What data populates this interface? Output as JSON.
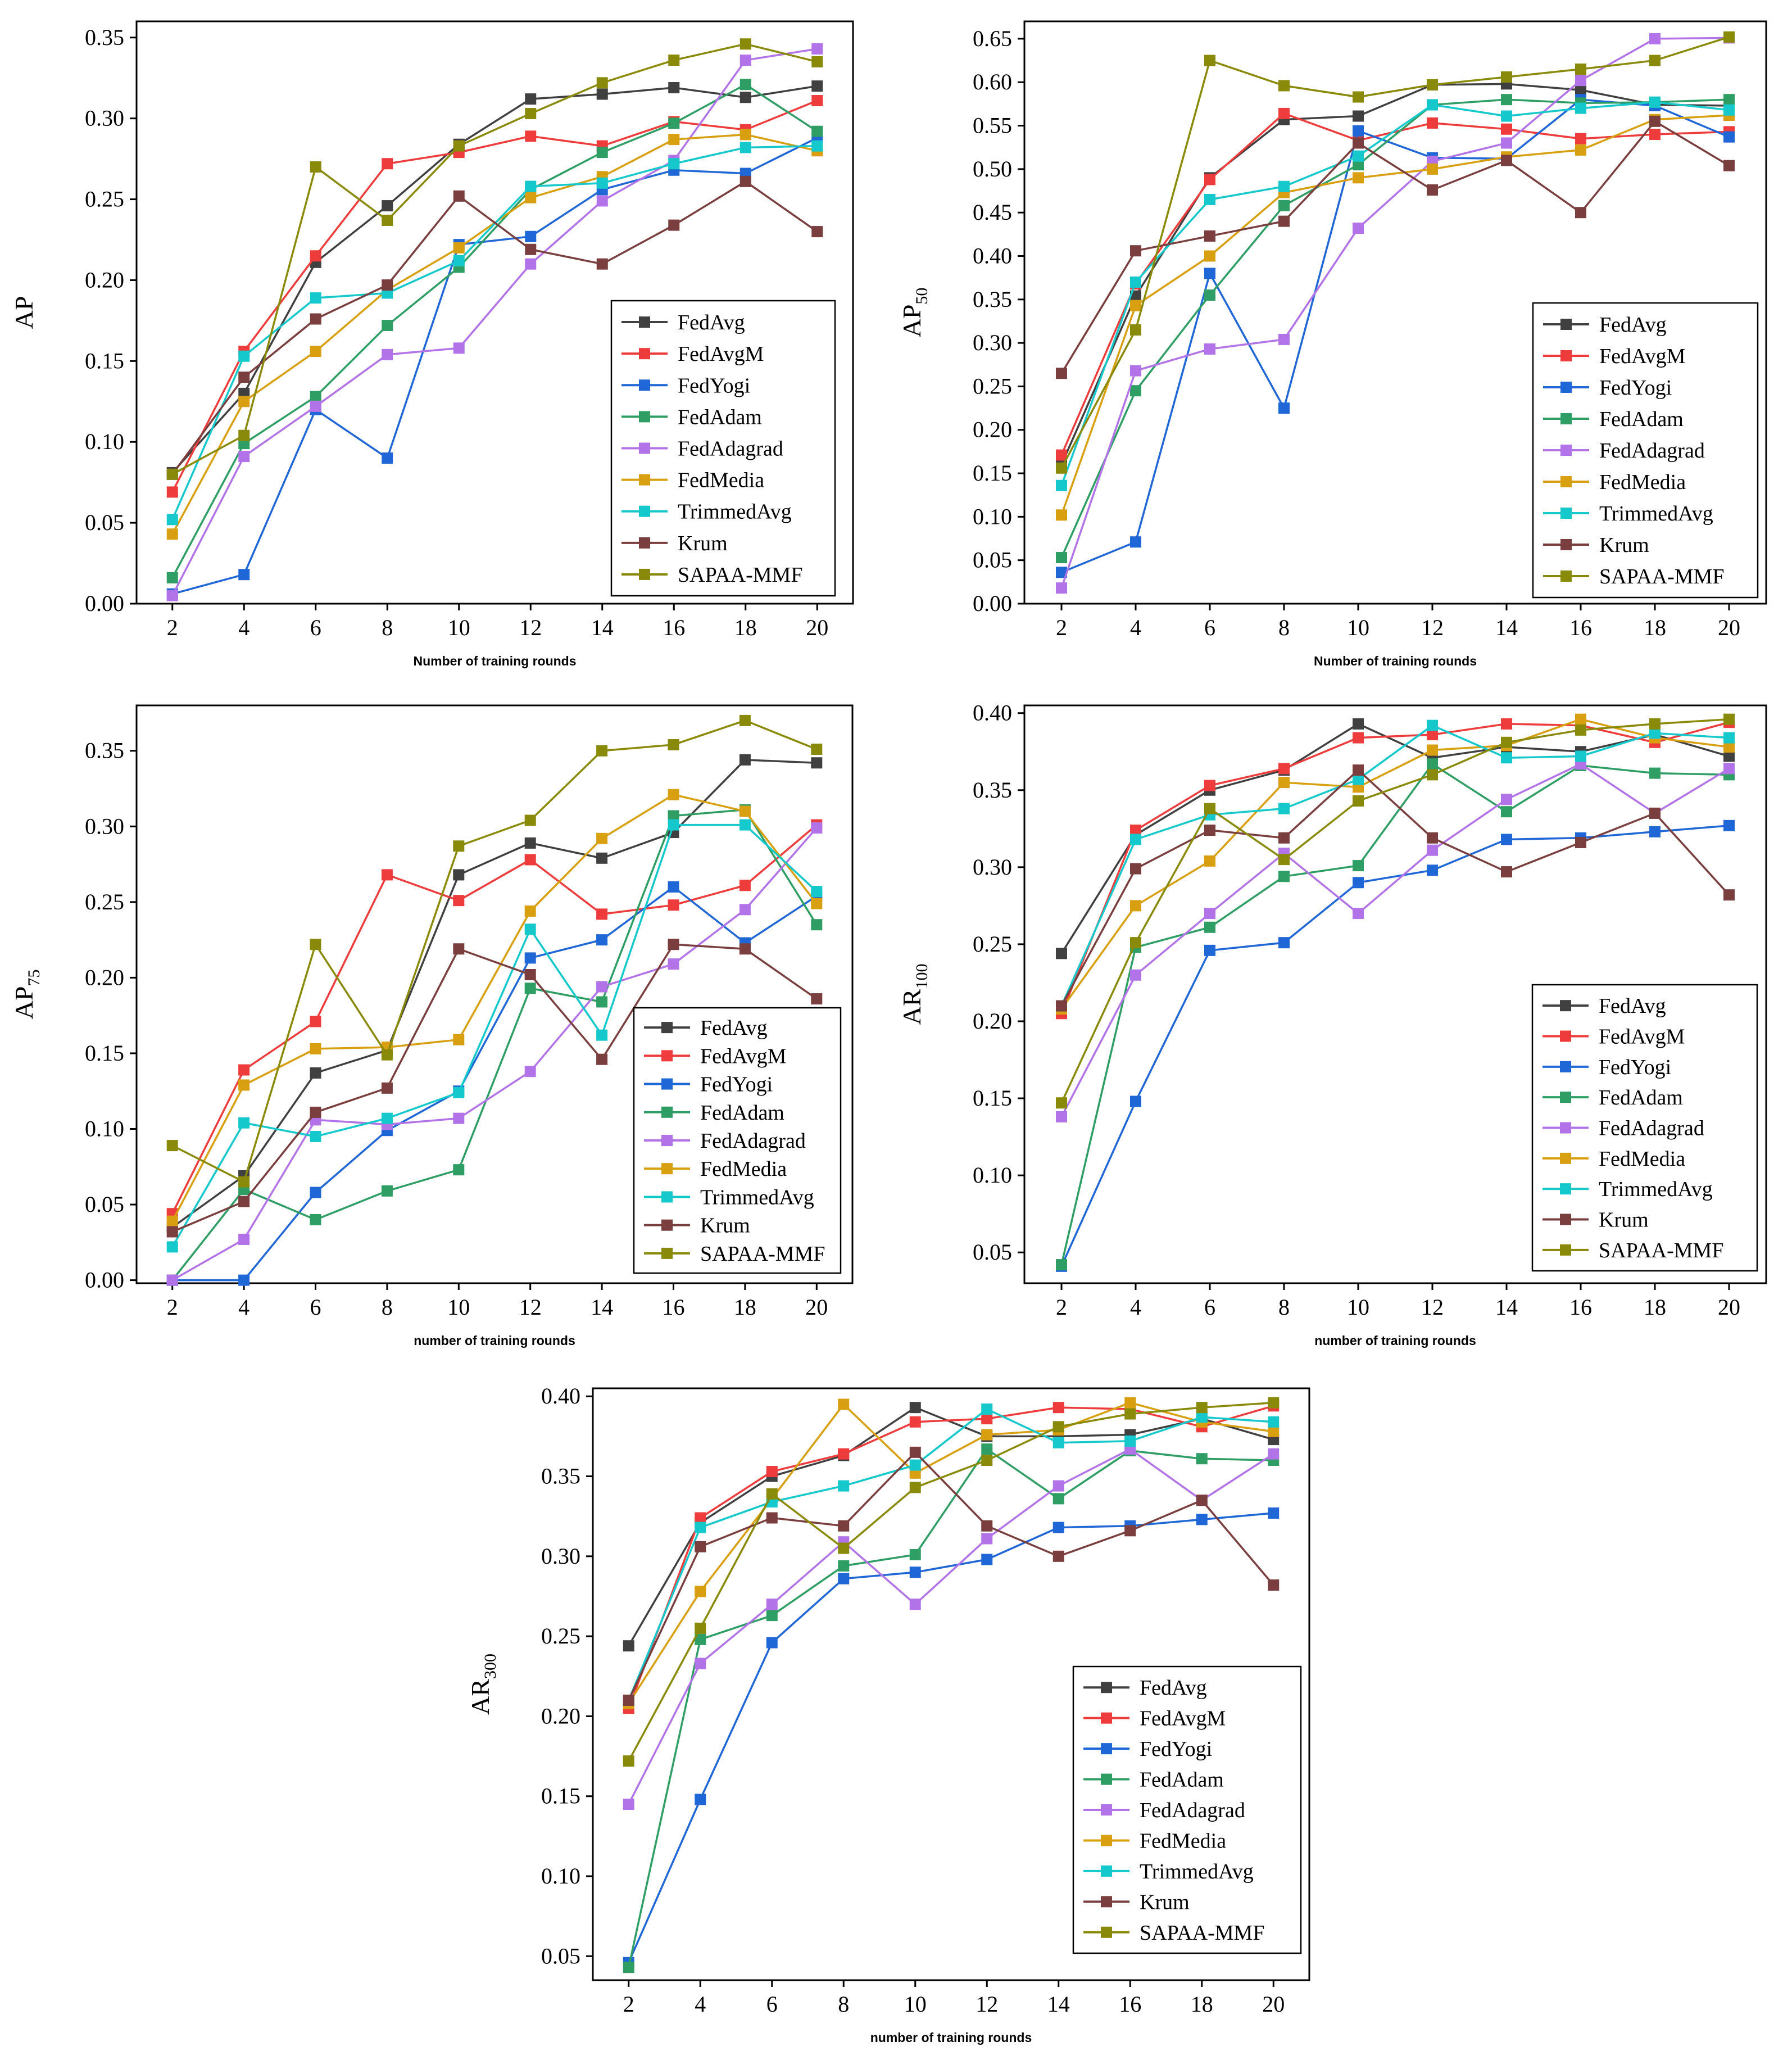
{
  "series_colors": {
    "FedAvg": "#404040",
    "FedAvgM": "#ee3b3b",
    "FedYogi": "#1f66d6",
    "FedAdam": "#2e9e64",
    "FedAdagrad": "#b373e8",
    "FedMedia": "#d8a010",
    "TrimmedAvg": "#14c8cc",
    "Krum": "#7a3e3e",
    "SAPAA-MMF": "#8a8a0a"
  },
  "chart_data": [
    {
      "type": "line",
      "ylabel": "AP",
      "ylabel_sub": "",
      "xlabel": "Number of training rounds",
      "x": [
        2,
        4,
        6,
        8,
        10,
        12,
        14,
        16,
        18,
        20
      ],
      "xticks": [
        "2",
        "4",
        "6",
        "8",
        "10",
        "12",
        "14",
        "16",
        "18",
        "20"
      ],
      "ylim": [
        0,
        0.36
      ],
      "yticks": [
        "0.00",
        "0.05",
        "0.10",
        "0.15",
        "0.20",
        "0.25",
        "0.30",
        "0.35"
      ],
      "legend": "lower-right",
      "series": [
        {
          "name": "FedAvg",
          "values": [
            0.081,
            0.13,
            0.211,
            0.246,
            0.284,
            0.312,
            0.315,
            0.319,
            0.313,
            0.32
          ]
        },
        {
          "name": "FedAvgM",
          "values": [
            0.069,
            0.156,
            0.215,
            0.272,
            0.279,
            0.289,
            0.283,
            0.298,
            0.293,
            0.311
          ]
        },
        {
          "name": "FedYogi",
          "values": [
            0.006,
            0.018,
            0.12,
            0.09,
            0.222,
            0.227,
            0.256,
            0.268,
            0.266,
            0.288
          ]
        },
        {
          "name": "FedAdam",
          "values": [
            0.016,
            0.099,
            0.128,
            0.172,
            0.208,
            0.256,
            0.279,
            0.297,
            0.321,
            0.292
          ]
        },
        {
          "name": "FedAdagrad",
          "values": [
            0.005,
            0.091,
            0.122,
            0.154,
            0.158,
            0.21,
            0.249,
            0.274,
            0.336,
            0.343
          ]
        },
        {
          "name": "FedMedia",
          "values": [
            0.043,
            0.125,
            0.156,
            0.194,
            0.22,
            0.251,
            0.264,
            0.287,
            0.29,
            0.28
          ]
        },
        {
          "name": "TrimmedAvg",
          "values": [
            0.052,
            0.153,
            0.189,
            0.192,
            0.212,
            0.258,
            0.26,
            0.272,
            0.282,
            0.283
          ]
        },
        {
          "name": "Krum",
          "values": [
            0.08,
            0.14,
            0.176,
            0.197,
            0.252,
            0.219,
            0.21,
            0.234,
            0.261,
            0.23
          ]
        },
        {
          "name": "SAPAA-MMF",
          "values": [
            0.08,
            0.104,
            0.27,
            0.237,
            0.283,
            0.303,
            0.322,
            0.336,
            0.346,
            0.335
          ]
        }
      ]
    },
    {
      "type": "line",
      "ylabel": "AP",
      "ylabel_sub": "50",
      "xlabel": "Number of training rounds",
      "x": [
        2,
        4,
        6,
        8,
        10,
        12,
        14,
        16,
        18,
        20
      ],
      "xticks": [
        "2",
        "4",
        "6",
        "8",
        "10",
        "12",
        "14",
        "16",
        "18",
        "20"
      ],
      "ylim": [
        0,
        0.67
      ],
      "yticks": [
        "0.00",
        "0.05",
        "0.10",
        "0.15",
        "0.20",
        "0.25",
        "0.30",
        "0.35",
        "0.40",
        "0.45",
        "0.50",
        "0.55",
        "0.60",
        "0.65"
      ],
      "legend": "lower-right",
      "series": [
        {
          "name": "FedAvg",
          "values": [
            0.16,
            0.354,
            0.49,
            0.557,
            0.561,
            0.597,
            0.598,
            0.591,
            0.574,
            0.573
          ]
        },
        {
          "name": "FedAvgM",
          "values": [
            0.171,
            0.368,
            0.488,
            0.564,
            0.533,
            0.553,
            0.546,
            0.535,
            0.54,
            0.543
          ]
        },
        {
          "name": "FedYogi",
          "values": [
            0.036,
            0.071,
            0.38,
            0.225,
            0.544,
            0.513,
            0.512,
            0.58,
            0.573,
            0.537
          ]
        },
        {
          "name": "FedAdam",
          "values": [
            0.053,
            0.245,
            0.355,
            0.458,
            0.505,
            0.574,
            0.58,
            0.576,
            0.577,
            0.58
          ]
        },
        {
          "name": "FedAdagrad",
          "values": [
            0.018,
            0.268,
            0.293,
            0.304,
            0.432,
            0.509,
            0.53,
            0.602,
            0.65,
            0.651
          ]
        },
        {
          "name": "FedMedia",
          "values": [
            0.102,
            0.343,
            0.4,
            0.473,
            0.49,
            0.5,
            0.514,
            0.522,
            0.557,
            0.562
          ]
        },
        {
          "name": "TrimmedAvg",
          "values": [
            0.136,
            0.37,
            0.465,
            0.48,
            0.515,
            0.574,
            0.561,
            0.57,
            0.577,
            0.568
          ]
        },
        {
          "name": "Krum",
          "values": [
            0.265,
            0.406,
            0.423,
            0.44,
            0.53,
            0.476,
            0.51,
            0.45,
            0.555,
            0.504
          ]
        },
        {
          "name": "SAPAA-MMF",
          "values": [
            0.156,
            0.315,
            0.625,
            0.596,
            0.583,
            0.597,
            0.606,
            0.615,
            0.625,
            0.652
          ]
        }
      ]
    },
    {
      "type": "line",
      "ylabel": "AP",
      "ylabel_sub": "75",
      "xlabel": "number of training rounds",
      "x": [
        2,
        4,
        6,
        8,
        10,
        12,
        14,
        16,
        18,
        20
      ],
      "xticks": [
        "2",
        "4",
        "6",
        "8",
        "10",
        "12",
        "14",
        "16",
        "18",
        "20"
      ],
      "ylim": [
        -0.002,
        0.38
      ],
      "yticks": [
        "0.00",
        "0.05",
        "0.10",
        "0.15",
        "0.20",
        "0.25",
        "0.30",
        "0.35"
      ],
      "legend": "lower-right",
      "series": [
        {
          "name": "FedAvg",
          "values": [
            0.035,
            0.069,
            0.137,
            0.152,
            0.268,
            0.289,
            0.279,
            0.296,
            0.344,
            0.342
          ]
        },
        {
          "name": "FedAvgM",
          "values": [
            0.044,
            0.139,
            0.171,
            0.268,
            0.251,
            0.278,
            0.242,
            0.248,
            0.261,
            0.301
          ]
        },
        {
          "name": "FedYogi",
          "values": [
            0.0,
            0.0,
            0.058,
            0.099,
            0.125,
            0.213,
            0.225,
            0.26,
            0.223,
            0.254
          ]
        },
        {
          "name": "FedAdam",
          "values": [
            0.0,
            0.06,
            0.04,
            0.059,
            0.073,
            0.193,
            0.184,
            0.307,
            0.311,
            0.235
          ]
        },
        {
          "name": "FedAdagrad",
          "values": [
            0.0,
            0.027,
            0.106,
            0.103,
            0.107,
            0.138,
            0.194,
            0.209,
            0.245,
            0.299
          ]
        },
        {
          "name": "FedMedia",
          "values": [
            0.039,
            0.129,
            0.153,
            0.154,
            0.159,
            0.244,
            0.292,
            0.321,
            0.31,
            0.249
          ]
        },
        {
          "name": "TrimmedAvg",
          "values": [
            0.022,
            0.104,
            0.095,
            0.107,
            0.124,
            0.232,
            0.162,
            0.301,
            0.301,
            0.257
          ]
        },
        {
          "name": "Krum",
          "values": [
            0.032,
            0.052,
            0.111,
            0.127,
            0.219,
            0.202,
            0.146,
            0.222,
            0.219,
            0.186
          ]
        },
        {
          "name": "SAPAA-MMF",
          "values": [
            0.089,
            0.065,
            0.222,
            0.149,
            0.287,
            0.304,
            0.35,
            0.354,
            0.37,
            0.351
          ]
        }
      ]
    },
    {
      "type": "line",
      "ylabel": "AR",
      "ylabel_sub": "100",
      "xlabel": "number of training rounds",
      "x": [
        2,
        4,
        6,
        8,
        10,
        12,
        14,
        16,
        18,
        20
      ],
      "xticks": [
        "2",
        "4",
        "6",
        "8",
        "10",
        "12",
        "14",
        "16",
        "18",
        "20"
      ],
      "ylim": [
        0.03,
        0.405
      ],
      "yticks": [
        "0.05",
        "0.10",
        "0.15",
        "0.20",
        "0.25",
        "0.30",
        "0.35",
        "0.40"
      ],
      "legend": "lower-right",
      "series": [
        {
          "name": "FedAvg",
          "values": [
            0.244,
            0.321,
            0.35,
            0.363,
            0.393,
            0.371,
            0.378,
            0.375,
            0.386,
            0.372
          ]
        },
        {
          "name": "FedAvgM",
          "values": [
            0.205,
            0.324,
            0.353,
            0.364,
            0.384,
            0.386,
            0.393,
            0.392,
            0.381,
            0.394
          ]
        },
        {
          "name": "FedYogi",
          "values": [
            0.041,
            0.148,
            0.246,
            0.251,
            0.29,
            0.298,
            0.318,
            0.319,
            0.323,
            0.327
          ]
        },
        {
          "name": "FedAdam",
          "values": [
            0.042,
            0.248,
            0.261,
            0.294,
            0.301,
            0.367,
            0.336,
            0.366,
            0.361,
            0.36
          ]
        },
        {
          "name": "FedAdagrad",
          "values": [
            0.138,
            0.23,
            0.27,
            0.309,
            0.27,
            0.311,
            0.344,
            0.367,
            0.335,
            0.364
          ]
        },
        {
          "name": "FedMedia",
          "values": [
            0.208,
            0.275,
            0.304,
            0.355,
            0.352,
            0.376,
            0.379,
            0.396,
            0.384,
            0.378
          ]
        },
        {
          "name": "TrimmedAvg",
          "values": [
            0.21,
            0.318,
            0.334,
            0.338,
            0.357,
            0.392,
            0.371,
            0.372,
            0.387,
            0.384
          ]
        },
        {
          "name": "Krum",
          "values": [
            0.21,
            0.299,
            0.324,
            0.319,
            0.363,
            0.319,
            0.297,
            0.316,
            0.335,
            0.282
          ]
        },
        {
          "name": "SAPAA-MMF",
          "values": [
            0.147,
            0.251,
            0.338,
            0.305,
            0.343,
            0.36,
            0.381,
            0.389,
            0.393,
            0.396
          ]
        }
      ]
    },
    {
      "type": "line",
      "ylabel": "AR",
      "ylabel_sub": "300",
      "xlabel": "number of training rounds",
      "x": [
        2,
        4,
        6,
        8,
        10,
        12,
        14,
        16,
        18,
        20
      ],
      "xticks": [
        "2",
        "4",
        "6",
        "8",
        "10",
        "12",
        "14",
        "16",
        "18",
        "20"
      ],
      "ylim": [
        0.035,
        0.405
      ],
      "yticks": [
        "0.05",
        "0.10",
        "0.15",
        "0.20",
        "0.25",
        "0.30",
        "0.35",
        "0.40"
      ],
      "legend": "lower-right",
      "series": [
        {
          "name": "FedAvg",
          "values": [
            0.244,
            0.321,
            0.35,
            0.363,
            0.393,
            0.375,
            0.375,
            0.376,
            0.386,
            0.373
          ]
        },
        {
          "name": "FedAvgM",
          "values": [
            0.205,
            0.324,
            0.353,
            0.364,
            0.384,
            0.386,
            0.393,
            0.392,
            0.381,
            0.394
          ]
        },
        {
          "name": "FedYogi",
          "values": [
            0.046,
            0.148,
            0.246,
            0.286,
            0.29,
            0.298,
            0.318,
            0.319,
            0.323,
            0.327
          ]
        },
        {
          "name": "FedAdam",
          "values": [
            0.043,
            0.248,
            0.263,
            0.294,
            0.301,
            0.367,
            0.336,
            0.366,
            0.361,
            0.36
          ]
        },
        {
          "name": "FedAdagrad",
          "values": [
            0.145,
            0.233,
            0.27,
            0.309,
            0.27,
            0.311,
            0.344,
            0.367,
            0.335,
            0.364
          ]
        },
        {
          "name": "FedMedia",
          "values": [
            0.208,
            0.278,
            0.336,
            0.395,
            0.352,
            0.376,
            0.379,
            0.396,
            0.384,
            0.378
          ]
        },
        {
          "name": "TrimmedAvg",
          "values": [
            0.21,
            0.318,
            0.334,
            0.344,
            0.357,
            0.392,
            0.371,
            0.372,
            0.387,
            0.384
          ]
        },
        {
          "name": "Krum",
          "values": [
            0.21,
            0.306,
            0.324,
            0.319,
            0.365,
            0.319,
            0.3,
            0.316,
            0.335,
            0.282
          ]
        },
        {
          "name": "SAPAA-MMF",
          "values": [
            0.172,
            0.255,
            0.339,
            0.305,
            0.343,
            0.36,
            0.381,
            0.389,
            0.393,
            0.396
          ]
        }
      ]
    }
  ]
}
